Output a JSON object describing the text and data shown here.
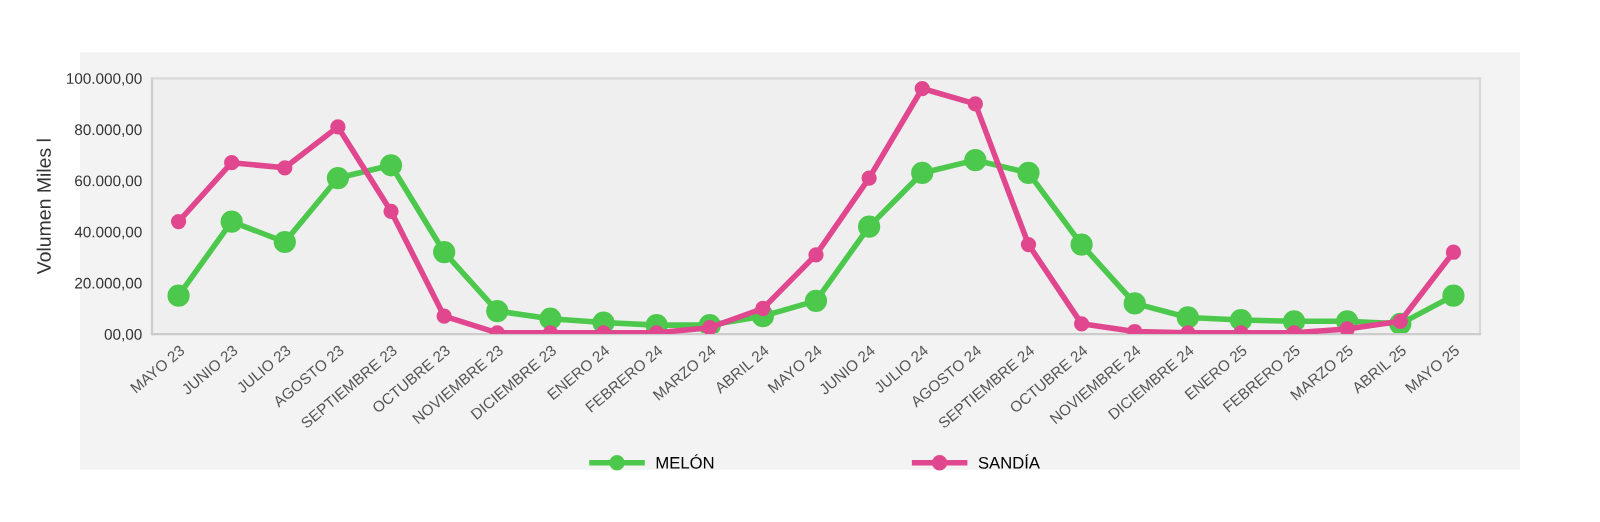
{
  "chart_data": {
    "type": "line",
    "ylabel": "Volumen Miles l",
    "categories": [
      "MAYO 23",
      "JUNIO 23",
      "JULIO 23",
      "AGOSTO 23",
      "SEPTIEMBRE 23",
      "OCTUBRE 23",
      "NOVIEMBRE 23",
      "DICIEMBRE 23",
      "ENERO 24",
      "FEBRERO 24",
      "MARZO 24",
      "ABRIL 24",
      "MAYO 24",
      "JUNIO 24",
      "JULIO 24",
      "AGOSTO 24",
      "SEPTIEMBRE 24",
      "OCTUBRE 24",
      "NOVIEMBRE 24",
      "DICIEMBRE 24",
      "ENERO 25",
      "FEBRERO 25",
      "MARZO 25",
      "ABRIL 25",
      "MAYO 25"
    ],
    "series": [
      {
        "name": "MELÓN",
        "color": "#4cc94c",
        "values": [
          15000,
          44000,
          36000,
          61000,
          66000,
          32000,
          9000,
          6000,
          4500,
          3500,
          3500,
          7000,
          13000,
          42000,
          63000,
          68000,
          63000,
          35000,
          12000,
          6500,
          5500,
          5000,
          5000,
          4000,
          15000
        ]
      },
      {
        "name": "SANDÍA",
        "color": "#e0478f",
        "values": [
          44000,
          67000,
          65000,
          81000,
          48000,
          7000,
          500,
          500,
          500,
          500,
          2500,
          10000,
          31000,
          61000,
          96000,
          90000,
          35000,
          4000,
          1000,
          500,
          500,
          500,
          2000,
          5000,
          32000
        ]
      }
    ],
    "ylim": [
      0,
      100000
    ],
    "yticks": [
      {
        "value": 0,
        "label": "00,00"
      },
      {
        "value": 20000,
        "label": "20.000,00"
      },
      {
        "value": 40000,
        "label": "40.000,00"
      },
      {
        "value": 60000,
        "label": "60.000,00"
      },
      {
        "value": 80000,
        "label": "80.000,00"
      },
      {
        "value": 100000,
        "label": "100.000,00"
      }
    ],
    "grid": false,
    "legend": "bottom",
    "marker": "circle",
    "line_style": "solid"
  }
}
